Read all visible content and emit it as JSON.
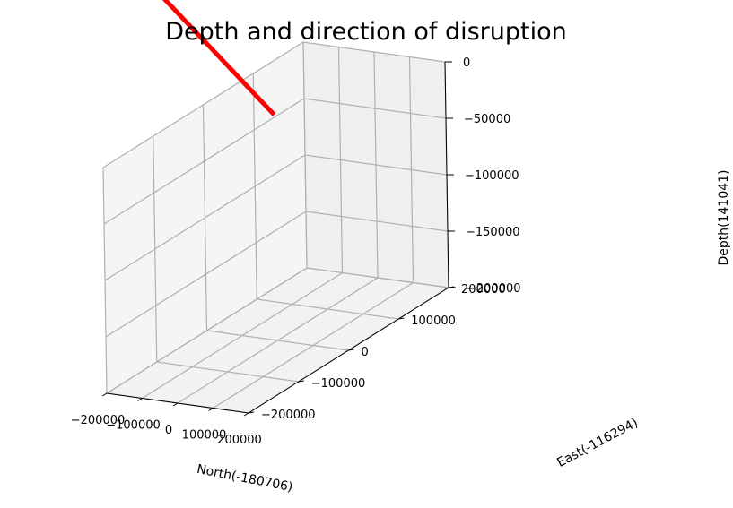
{
  "chart_data": {
    "type": "line3d",
    "title": "Depth and direction of disruption",
    "xlabel": "North(-180706)",
    "ylabel": "East(-116294)",
    "zlabel": "Depth(141041)",
    "xlim": [
      -200000,
      200000
    ],
    "ylim": [
      -200000,
      200000
    ],
    "zlim": [
      -200000,
      0
    ],
    "x_ticks": [
      "−200000",
      "−100000",
      "0",
      "100000",
      "200000"
    ],
    "y_ticks": [
      "−200000",
      "−100000",
      "0",
      "100000",
      "200000"
    ],
    "z_ticks": [
      "−200000",
      "−150000",
      "−100000",
      "−50000",
      "0"
    ],
    "grid": true,
    "series": [
      {
        "color": "#ff0000",
        "points": [
          [
            -180706,
            -116294,
            141041
          ],
          [
            0,
            0,
            0
          ]
        ]
      }
    ]
  }
}
